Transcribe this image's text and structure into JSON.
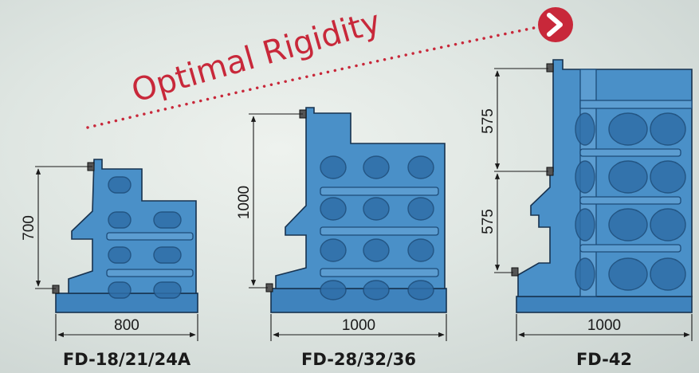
{
  "headline": "Optimal Rigidity",
  "arrow_icon": "chevron-right-icon",
  "accent_color": "#c8283a",
  "body_color": "#4a90c8",
  "models": [
    {
      "name": "FD-18/21/24A",
      "width_label": "800",
      "heights": [
        "700"
      ]
    },
    {
      "name": "FD-28/32/36",
      "width_label": "1000",
      "heights": [
        "1000"
      ]
    },
    {
      "name": "FD-42",
      "width_label": "1000",
      "heights": [
        "575",
        "575"
      ]
    }
  ]
}
